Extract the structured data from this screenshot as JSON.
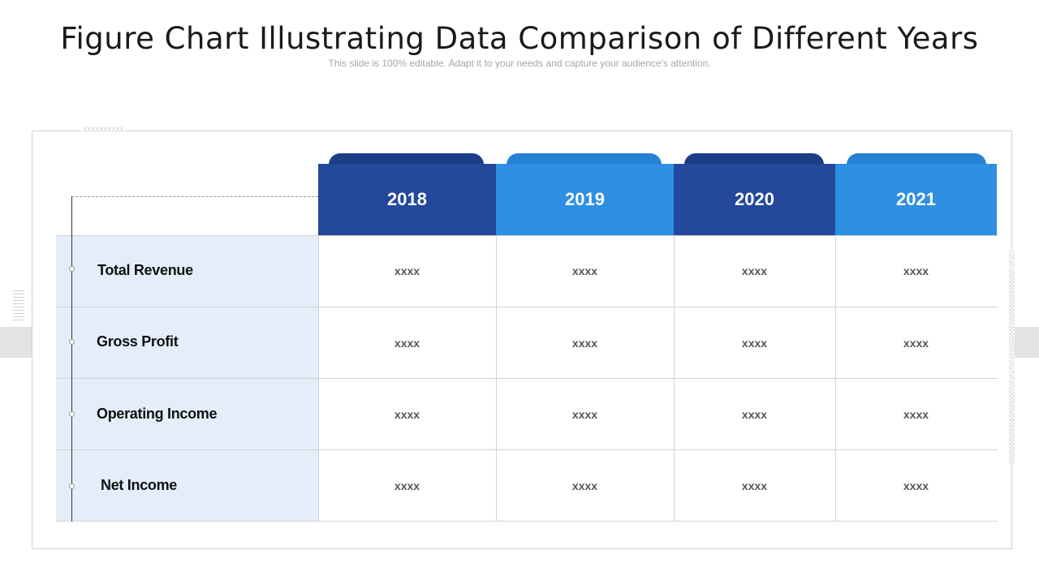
{
  "slide": {
    "title": "Figure Chart Illustrating Data Comparison of Different Years",
    "subtitle": "This slide is 100% editable. Adapt it to your needs and capture your audience's attention.",
    "decoration_marks": "xxxxxxxxxx"
  },
  "table": {
    "years": [
      "2018",
      "2019",
      "2020",
      "2021"
    ],
    "rows": [
      {
        "label": "Total Revenue",
        "values": [
          "xxxx",
          "xxxx",
          "xxxx",
          "xxxx"
        ]
      },
      {
        "label": "Gross Profit",
        "values": [
          "xxxx",
          "xxxx",
          "xxxx",
          "xxxx"
        ]
      },
      {
        "label": "Operating Income",
        "values": [
          "xxxx",
          "xxxx",
          "xxxx",
          "xxxx"
        ]
      },
      {
        "label": "Net Income",
        "values": [
          "xxxx",
          "xxxx",
          "xxxx",
          "xxxx"
        ]
      }
    ]
  },
  "colors": {
    "dark_blue": "#23489c",
    "light_blue": "#2e8fe3",
    "label_column": "#e3eefa"
  }
}
